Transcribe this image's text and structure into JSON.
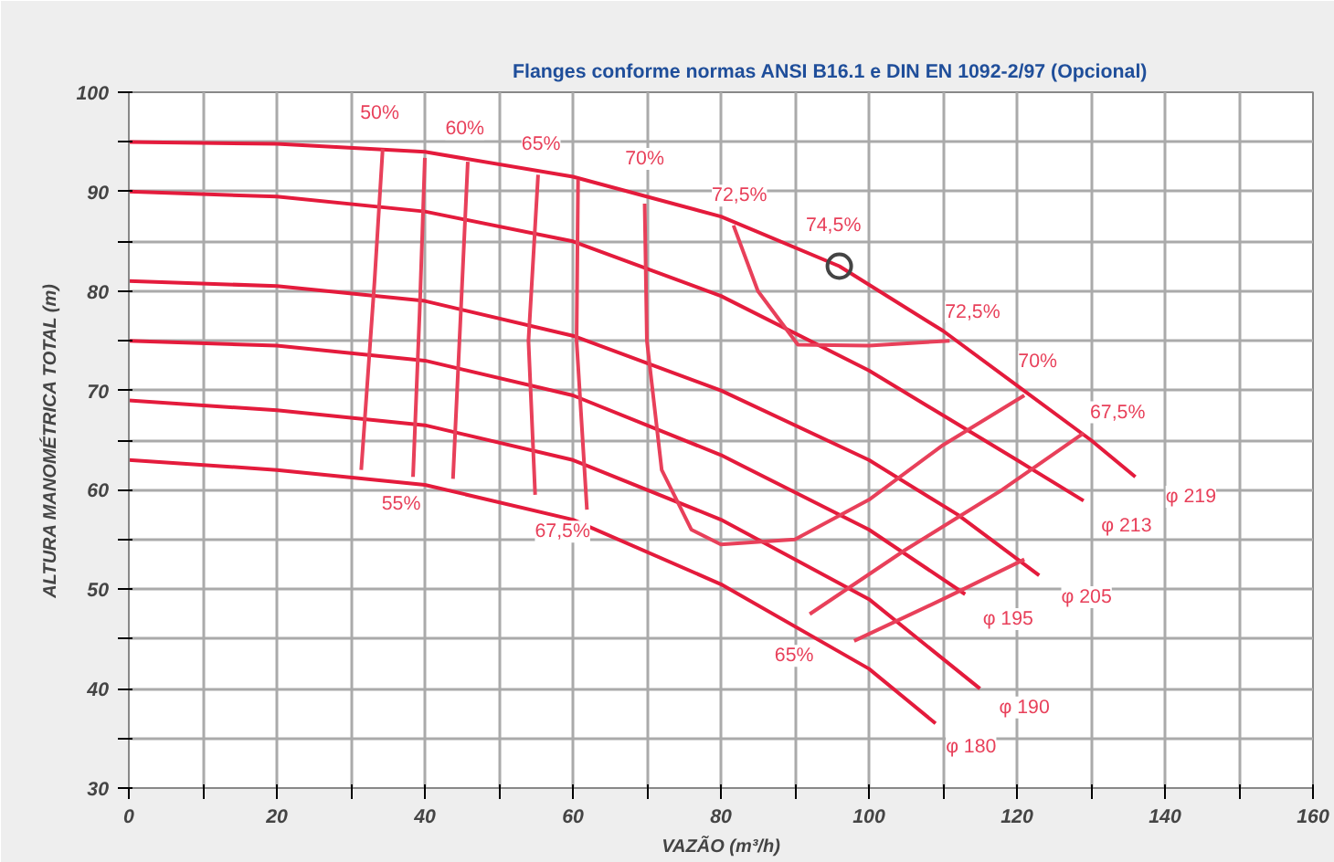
{
  "chart_data": {
    "type": "line",
    "title": "Flanges conforme normas ANSI B16.1 e DIN EN 1092-2/97 (Opcional)",
    "xlabel": "VAZÃO (m³/h)",
    "ylabel": "ALTURA MANOMÉTRICA TOTAL (m)",
    "xlim": [
      0,
      160
    ],
    "ylim": [
      30,
      100
    ],
    "xticks": [
      0,
      {
        "value": 10,
        "label": null
      },
      20,
      {
        "value": 30,
        "label": null
      },
      40,
      {
        "value": 50,
        "label": null
      },
      60,
      {
        "value": 70,
        "label": null
      },
      80,
      {
        "value": 90,
        "label": null
      },
      100,
      {
        "value": 110,
        "label": null
      },
      120,
      {
        "value": 130,
        "label": null
      },
      140,
      {
        "value": 150,
        "label": null
      },
      160
    ],
    "yticks": [
      30,
      {
        "value": 35,
        "label": null
      },
      40,
      {
        "value": 45,
        "label": null
      },
      50,
      {
        "value": 55,
        "label": null
      },
      60,
      {
        "value": 65,
        "label": null
      },
      70,
      {
        "value": 75,
        "label": null
      },
      80,
      {
        "value": 85,
        "label": null
      },
      90,
      {
        "value": 95,
        "label": null
      },
      100
    ],
    "grid": true,
    "line_style": "solid",
    "marker": "none",
    "series": [
      {
        "color": "#e41b3c",
        "x": [
          0,
          20,
          40,
          60,
          80,
          96,
          110,
          120,
          130,
          136
        ],
        "values": [
          95,
          94.8,
          94,
          91.5,
          87.5,
          82.5,
          76,
          70.5,
          65,
          61.3
        ]
      },
      {
        "color": "#e41b3c",
        "x": [
          0,
          20,
          40,
          60,
          80,
          100,
          110,
          120,
          129
        ],
        "values": [
          90,
          89.5,
          88,
          85,
          79.5,
          72,
          67.5,
          63,
          58.9
        ]
      },
      {
        "color": "#e41b3c",
        "x": [
          0,
          20,
          40,
          60,
          80,
          100,
          112,
          123
        ],
        "values": [
          81,
          80.5,
          79,
          75.5,
          70,
          63,
          57.5,
          51.4
        ]
      },
      {
        "color": "#e41b3c",
        "x": [
          0,
          20,
          40,
          60,
          80,
          100,
          113
        ],
        "values": [
          75,
          74.5,
          73,
          69.5,
          63.5,
          56,
          49.5
        ]
      },
      {
        "color": "#e41b3c",
        "x": [
          0,
          20,
          40,
          60,
          80,
          100,
          115
        ],
        "values": [
          69,
          68,
          66.5,
          63,
          57,
          49,
          40
        ]
      },
      {
        "color": "#e41b3c",
        "x": [
          0,
          20,
          40,
          60,
          80,
          100,
          109
        ],
        "values": [
          63,
          62,
          60.5,
          57,
          50.5,
          42,
          36.5
        ]
      },
      {
        "color": "#e8405a",
        "x": [
          34.3,
          33.2,
          31.4
        ],
        "values": [
          94.3,
          81,
          62
        ]
      },
      {
        "color": "#e8405a",
        "x": [
          40,
          39.3,
          38.4
        ],
        "values": [
          93.4,
          78,
          61.3
        ]
      },
      {
        "color": "#e8405a",
        "x": [
          45.8,
          44.8,
          43.8
        ],
        "values": [
          93,
          77,
          61.1
        ]
      },
      {
        "color": "#e8405a",
        "x": [
          55.3,
          54,
          54.9
        ],
        "values": [
          91.7,
          75,
          59.5
        ]
      },
      {
        "color": "#e8405a",
        "x": [
          60.7,
          60.5,
          61.9
        ],
        "values": [
          91.2,
          75,
          58
        ]
      },
      {
        "color": "#e8405a",
        "x": [
          69.7,
          70,
          72,
          76,
          80,
          90,
          100,
          110,
          121
        ],
        "values": [
          88.8,
          75,
          62,
          56,
          54.5,
          55,
          59,
          64.5,
          69.5
        ]
      },
      {
        "color": "#e8405a",
        "x": [
          81.7,
          85,
          90.4,
          100,
          110.9
        ],
        "values": [
          86.6,
          80,
          74.6,
          74.5,
          75
        ]
      },
      {
        "color": "#e8405a",
        "x": [
          92,
          105,
          118,
          129
        ],
        "values": [
          47.5,
          54,
          60,
          65.7
        ]
      },
      {
        "color": "#e8405a",
        "x": [
          98,
          110,
          121
        ],
        "values": [
          44.8,
          49,
          53
        ]
      },
      {
        "type": "scatter",
        "color": "#444444",
        "marker": "circle",
        "x": [
          96
        ],
        "values": [
          82.5
        ]
      }
    ],
    "annotations": [
      {
        "text": "50%",
        "x": 33.9,
        "y": 97.9
      },
      {
        "text": "60%",
        "x": 45.4,
        "y": 96.3
      },
      {
        "text": "65%",
        "x": 55.7,
        "y": 94.8
      },
      {
        "text": "70%",
        "x": 69.7,
        "y": 93.3
      },
      {
        "text": "72,5%",
        "x": 82.5,
        "y": 89.6
      },
      {
        "text": "74,5%",
        "x": 95.2,
        "y": 86.6
      },
      {
        "text": "72,5%",
        "x": 114,
        "y": 77.9
      },
      {
        "text": "70%",
        "x": 122.8,
        "y": 72.9
      },
      {
        "text": "67,5%",
        "x": 133.6,
        "y": 67.8
      },
      {
        "text": "55%",
        "x": 36.8,
        "y": 58.6
      },
      {
        "text": "67,5%",
        "x": 58.6,
        "y": 55.8
      },
      {
        "text": "65%",
        "x": 89.9,
        "y": 43.3
      },
      {
        "text": "φ 219",
        "x": 143.5,
        "y": 59.3
      },
      {
        "text": "φ 213",
        "x": 134.8,
        "y": 56.4
      },
      {
        "text": "φ 205",
        "x": 129.4,
        "y": 49.2
      },
      {
        "text": "φ 195",
        "x": 118.8,
        "y": 47
      },
      {
        "text": "φ 190",
        "x": 121,
        "y": 38.1
      },
      {
        "text": "φ 180",
        "x": 113.8,
        "y": 34.1
      }
    ]
  }
}
